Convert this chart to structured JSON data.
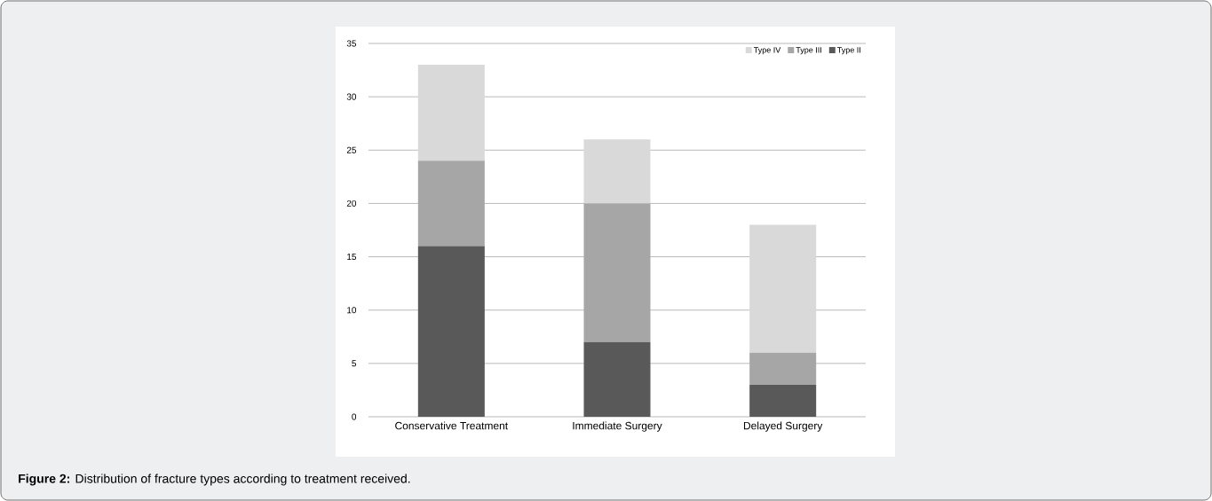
{
  "chart_data": {
    "type": "bar",
    "stacked": true,
    "categories": [
      "Conservative Treatment",
      "Immediate Surgery",
      "Delayed Surgery"
    ],
    "series": [
      {
        "name": "Type II",
        "color": "#595959",
        "values": [
          16,
          7,
          3
        ]
      },
      {
        "name": "Type III",
        "color": "#a6a6a6",
        "values": [
          8,
          13,
          3
        ]
      },
      {
        "name": "Type IV",
        "color": "#d9d9d9",
        "values": [
          9,
          6,
          12
        ]
      }
    ],
    "ylim": [
      0,
      35
    ],
    "yticks": [
      0,
      5,
      10,
      15,
      20,
      25,
      30,
      35
    ],
    "grid": "y",
    "legend": "top right",
    "annotations": [
      "**Figure 2:** Distribution of fracture types according to treatment received."
    ]
  }
}
